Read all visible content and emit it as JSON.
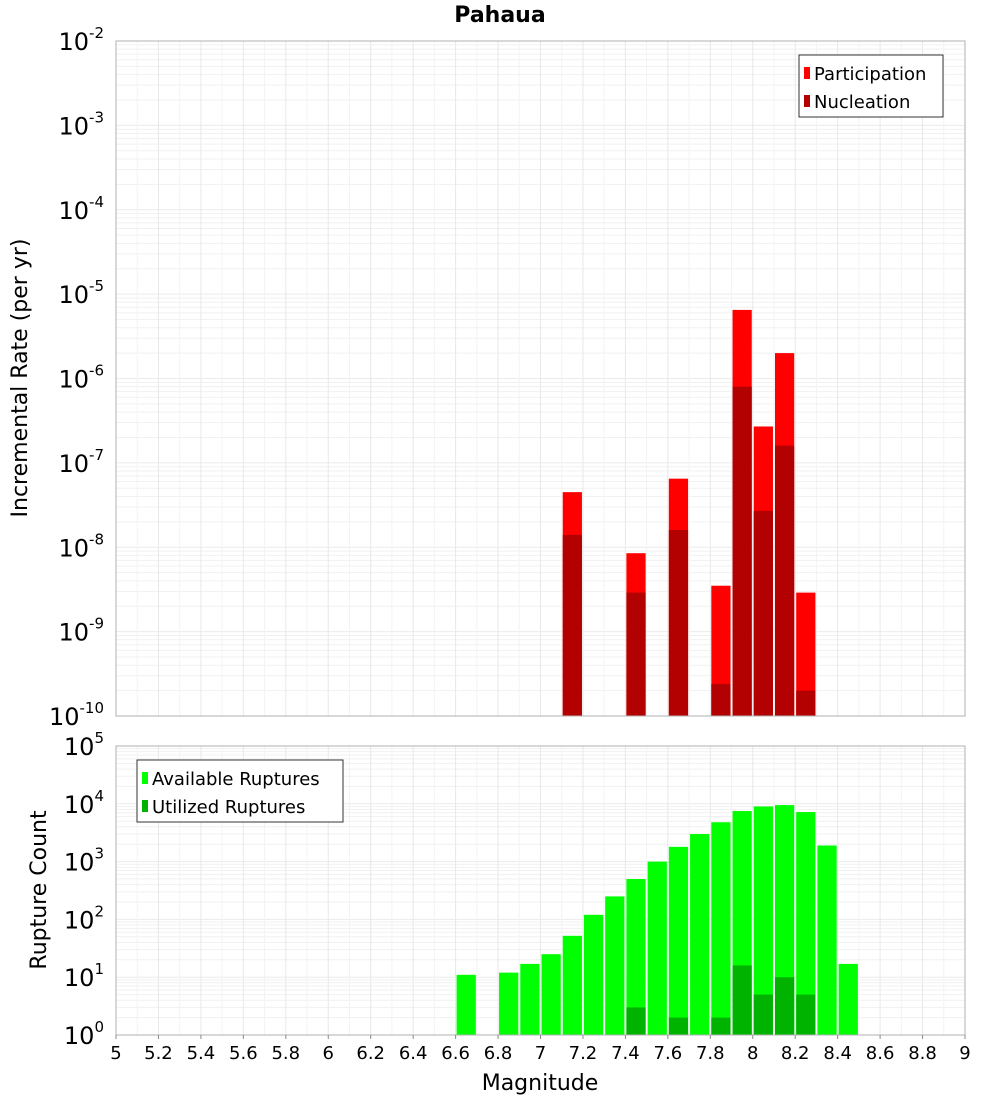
{
  "title": "Pahaua",
  "chart_data": [
    {
      "type": "bar",
      "name": "top",
      "ylabel": "Incremental Rate (per yr)",
      "yscale": "log",
      "ylim": [
        1e-10,
        0.01
      ],
      "xlim": [
        5,
        9
      ],
      "grid": true,
      "legend_position": "top-right",
      "series": [
        {
          "name": "Participation",
          "color": "#ff0000",
          "points": [
            {
              "x": 7.15,
              "y": 4.5e-08
            },
            {
              "x": 7.45,
              "y": 8.5e-09
            },
            {
              "x": 7.65,
              "y": 6.5e-08
            },
            {
              "x": 7.85,
              "y": 3.5e-09
            },
            {
              "x": 7.95,
              "y": 6.5e-06
            },
            {
              "x": 8.05,
              "y": 2.7e-07
            },
            {
              "x": 8.15,
              "y": 2e-06
            },
            {
              "x": 8.25,
              "y": 2.9e-09
            }
          ]
        },
        {
          "name": "Nucleation",
          "color": "#b30000",
          "points": [
            {
              "x": 7.15,
              "y": 1.4e-08
            },
            {
              "x": 7.45,
              "y": 2.9e-09
            },
            {
              "x": 7.65,
              "y": 1.6e-08
            },
            {
              "x": 7.85,
              "y": 2.4e-10
            },
            {
              "x": 7.95,
              "y": 8e-07
            },
            {
              "x": 8.05,
              "y": 2.7e-08
            },
            {
              "x": 8.15,
              "y": 1.6e-07
            },
            {
              "x": 8.25,
              "y": 2e-10
            }
          ]
        }
      ]
    },
    {
      "type": "bar",
      "name": "bottom",
      "xlabel": "Magnitude",
      "ylabel": "Rupture Count",
      "yscale": "log",
      "ylim": [
        1,
        100000
      ],
      "xlim": [
        5,
        9
      ],
      "grid": true,
      "legend_position": "top-left",
      "x_ticks": [
        "5",
        "5.2",
        "5.4",
        "5.6",
        "5.8",
        "6",
        "6.2",
        "6.4",
        "6.6",
        "6.8",
        "7",
        "7.2",
        "7.4",
        "7.6",
        "7.8",
        "8",
        "8.2",
        "8.4",
        "8.6",
        "8.8",
        "9"
      ],
      "series": [
        {
          "name": "Available Ruptures",
          "color": "#00ff00",
          "points": [
            {
              "x": 6.65,
              "y": 11
            },
            {
              "x": 6.85,
              "y": 12
            },
            {
              "x": 6.95,
              "y": 17
            },
            {
              "x": 7.05,
              "y": 25
            },
            {
              "x": 7.15,
              "y": 52
            },
            {
              "x": 7.25,
              "y": 120
            },
            {
              "x": 7.35,
              "y": 250
            },
            {
              "x": 7.45,
              "y": 500
            },
            {
              "x": 7.55,
              "y": 1000
            },
            {
              "x": 7.65,
              "y": 1800
            },
            {
              "x": 7.75,
              "y": 3000
            },
            {
              "x": 7.85,
              "y": 4800
            },
            {
              "x": 7.95,
              "y": 7500
            },
            {
              "x": 8.05,
              "y": 9000
            },
            {
              "x": 8.15,
              "y": 9500
            },
            {
              "x": 8.25,
              "y": 7200
            },
            {
              "x": 8.35,
              "y": 1900
            },
            {
              "x": 8.45,
              "y": 17
            }
          ]
        },
        {
          "name": "Utilized Ruptures",
          "color": "#00b300",
          "points": [
            {
              "x": 7.05,
              "y": 1
            },
            {
              "x": 7.15,
              "y": 1
            },
            {
              "x": 7.45,
              "y": 3
            },
            {
              "x": 7.65,
              "y": 2
            },
            {
              "x": 7.75,
              "y": 1
            },
            {
              "x": 7.85,
              "y": 2
            },
            {
              "x": 7.95,
              "y": 16
            },
            {
              "x": 8.05,
              "y": 5
            },
            {
              "x": 8.15,
              "y": 10
            },
            {
              "x": 8.25,
              "y": 5
            }
          ]
        }
      ]
    }
  ],
  "colors": {
    "grid": "#ebebeb",
    "frame": "#b0b0b0"
  }
}
